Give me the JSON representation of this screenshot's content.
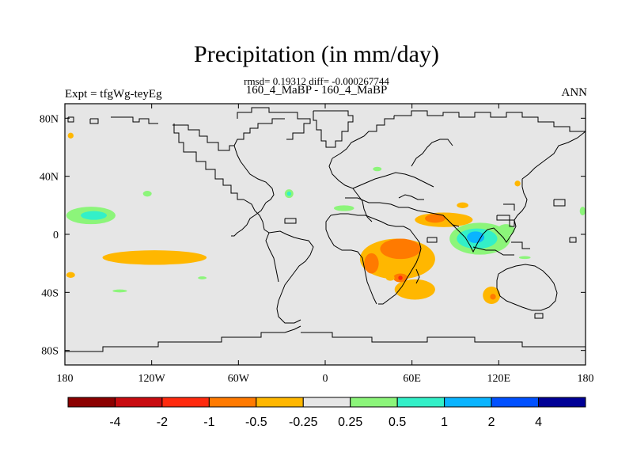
{
  "title": "Precipitation (in mm/day)",
  "stats": "rmsd= 0.19312 diff= -0.000267744",
  "cases": "160_4_MaBP - 160_4_MaBP",
  "experiment": "Expt = tfgWg-teyEg",
  "season": "ANN",
  "map": {
    "lon_range": [
      -180,
      180
    ],
    "lat_range": [
      -90,
      90
    ],
    "background_color": "#e6e6e6",
    "x_ticks": [
      {
        "value": -180,
        "label": "180"
      },
      {
        "value": -120,
        "label": "120W"
      },
      {
        "value": -60,
        "label": "60W"
      },
      {
        "value": 0,
        "label": "0"
      },
      {
        "value": 60,
        "label": "60E"
      },
      {
        "value": 120,
        "label": "120E"
      },
      {
        "value": 180,
        "label": "180"
      }
    ],
    "y_ticks": [
      {
        "value": 80,
        "label": "80N"
      },
      {
        "value": 40,
        "label": "40N"
      },
      {
        "value": 0,
        "label": "0"
      },
      {
        "value": -40,
        "label": "40S"
      },
      {
        "value": -80,
        "label": "80S"
      }
    ]
  },
  "colorbar": {
    "colors": [
      "#8b0000",
      "#c80b10",
      "#ff2a0e",
      "#ff7a00",
      "#ffb700",
      "#e6e6e6",
      "#8cf57a",
      "#33f0c8",
      "#0ab4ff",
      "#0050ff",
      "#000096"
    ],
    "labels": [
      "-4",
      "-2",
      "-1",
      "-0.5",
      "-0.25",
      "0.25",
      "0.5",
      "1",
      "2",
      "4"
    ]
  },
  "anomalies": [
    {
      "kind": "positive-weak",
      "color": "#8cf57a",
      "lon": -162,
      "lat": 13,
      "rlon": 17,
      "rlat": 6
    },
    {
      "kind": "positive-mid",
      "color": "#33f0c8",
      "lon": -160,
      "lat": 13,
      "rlon": 9,
      "rlat": 3
    },
    {
      "kind": "positive-weak",
      "color": "#8cf57a",
      "lon": -123,
      "lat": 28,
      "rlon": 3,
      "rlat": 2
    },
    {
      "kind": "positive-weak",
      "color": "#8cf57a",
      "lon": -25,
      "lat": 28,
      "rlon": 3,
      "rlat": 3
    },
    {
      "kind": "positive-mid",
      "color": "#33f0c8",
      "lon": -25,
      "lat": 28,
      "rlon": 1.5,
      "rlat": 1.5
    },
    {
      "kind": "positive-weak",
      "color": "#8cf57a",
      "lon": 13,
      "lat": 18,
      "rlon": 7,
      "rlat": 2
    },
    {
      "kind": "positive-weak",
      "color": "#8cf57a",
      "lon": 36,
      "lat": 45,
      "rlon": 3,
      "rlat": 1.5
    },
    {
      "kind": "positive-weak",
      "color": "#8cf57a",
      "lon": 107,
      "lat": -3,
      "rlon": 21,
      "rlat": 11
    },
    {
      "kind": "positive-mid",
      "color": "#33f0c8",
      "lon": 105,
      "lat": -3,
      "rlon": 14,
      "rlat": 7
    },
    {
      "kind": "positive-strong",
      "color": "#0ab4ff",
      "lon": 104,
      "lat": -2,
      "rlon": 6,
      "rlat": 4
    },
    {
      "kind": "positive-weak",
      "color": "#8cf57a",
      "lon": 125,
      "lat": 3,
      "rlon": 6,
      "rlat": 4
    },
    {
      "kind": "positive-weak",
      "color": "#8cf57a",
      "lon": 138,
      "lat": -16,
      "rlon": 4,
      "rlat": 1
    },
    {
      "kind": "positive-weak",
      "color": "#8cf57a",
      "lon": -142,
      "lat": -39,
      "rlon": 5,
      "rlat": 1
    },
    {
      "kind": "positive-weak",
      "color": "#8cf57a",
      "lon": -85,
      "lat": -30,
      "rlon": 3,
      "rlat": 1
    },
    {
      "kind": "positive-weak",
      "color": "#8cf57a",
      "lon": 178,
      "lat": 16,
      "rlon": 2,
      "rlat": 3
    },
    {
      "kind": "negative-weak",
      "color": "#ffb700",
      "lon": -118,
      "lat": -16,
      "rlon": 36,
      "rlat": 5
    },
    {
      "kind": "negative-weak",
      "color": "#ffb700",
      "lon": -176,
      "lat": -28,
      "rlon": 3,
      "rlat": 2
    },
    {
      "kind": "negative-weak",
      "color": "#ffb700",
      "lon": -176,
      "lat": 68,
      "rlon": 2,
      "rlat": 2
    },
    {
      "kind": "negative-weak",
      "color": "#ffb700",
      "lon": 50,
      "lat": -17,
      "rlon": 26,
      "rlat": 14
    },
    {
      "kind": "negative-mid",
      "color": "#ff7a00",
      "lon": 52,
      "lat": -10,
      "rlon": 14,
      "rlat": 7
    },
    {
      "kind": "negative-mid",
      "color": "#ff7a00",
      "lon": 32,
      "lat": -20,
      "rlon": 5,
      "rlat": 7
    },
    {
      "kind": "negative-weak",
      "color": "#ffb700",
      "lon": 82,
      "lat": 10,
      "rlon": 20,
      "rlat": 5
    },
    {
      "kind": "negative-mid",
      "color": "#ff7a00",
      "lon": 76,
      "lat": 11,
      "rlon": 7,
      "rlat": 3
    },
    {
      "kind": "negative-weak",
      "color": "#ffb700",
      "lon": 62,
      "lat": -38,
      "rlon": 14,
      "rlat": 7
    },
    {
      "kind": "negative-mid",
      "color": "#ff7a00",
      "lon": 52,
      "lat": -30,
      "rlon": 5,
      "rlat": 3
    },
    {
      "kind": "negative-strong",
      "color": "#ff2a0e",
      "lon": 52,
      "lat": -30,
      "rlon": 1.5,
      "rlat": 1.5
    },
    {
      "kind": "negative-weak",
      "color": "#ffb700",
      "lon": 115,
      "lat": -42,
      "rlon": 6,
      "rlat": 6
    },
    {
      "kind": "negative-mid",
      "color": "#ff7a00",
      "lon": 116,
      "lat": -43,
      "rlon": 2,
      "rlat": 2
    },
    {
      "kind": "negative-weak",
      "color": "#ffb700",
      "lon": 95,
      "lat": 20,
      "rlon": 4,
      "rlat": 2
    },
    {
      "kind": "negative-weak",
      "color": "#ffb700",
      "lon": 133,
      "lat": 35,
      "rlon": 2,
      "rlat": 2
    },
    {
      "kind": "negative-weak",
      "color": "#ffb700",
      "lon": 45,
      "lat": -30,
      "rlon": 3,
      "rlat": 2
    }
  ]
}
